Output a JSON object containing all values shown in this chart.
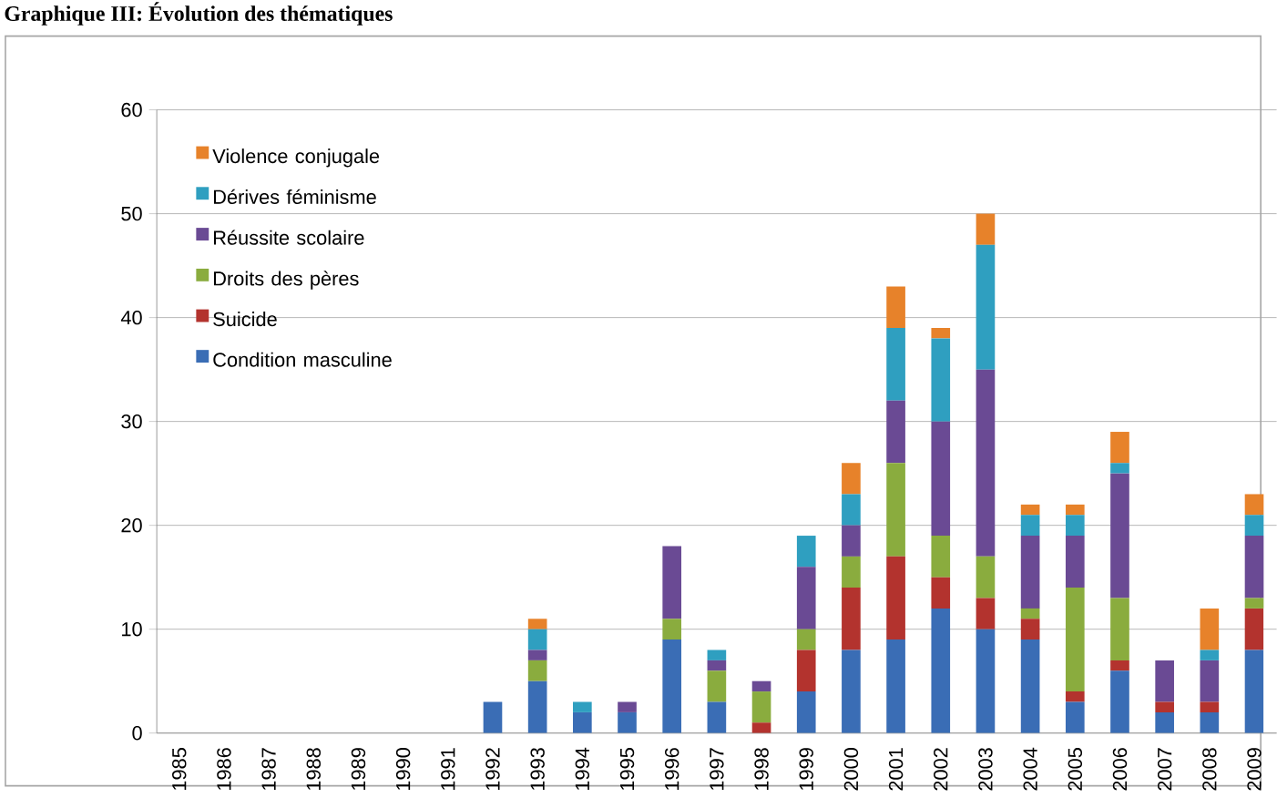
{
  "chart_data": {
    "type": "bar",
    "stacked": true,
    "title": "Graphique III: Évolution des thématiques",
    "categories": [
      "1985",
      "1986",
      "1987",
      "1988",
      "1989",
      "1990",
      "1991",
      "1992",
      "1993",
      "1994",
      "1995",
      "1996",
      "1997",
      "1998",
      "1999",
      "2000",
      "2001",
      "2002",
      "2003",
      "2004",
      "2005",
      "2006",
      "2007",
      "2008",
      "2009"
    ],
    "series": [
      {
        "name": "Condition masculine",
        "color": "#3a6db5",
        "values": [
          0,
          0,
          0,
          0,
          0,
          0,
          0,
          3,
          5,
          2,
          2,
          9,
          3,
          0,
          4,
          8,
          9,
          12,
          10,
          9,
          3,
          6,
          2,
          2,
          8
        ]
      },
      {
        "name": "Suicide",
        "color": "#b3332e",
        "values": [
          0,
          0,
          0,
          0,
          0,
          0,
          0,
          0,
          0,
          0,
          0,
          0,
          0,
          1,
          4,
          6,
          8,
          3,
          3,
          2,
          1,
          1,
          1,
          1,
          4
        ]
      },
      {
        "name": "Droits des pères",
        "color": "#8aac3e",
        "values": [
          0,
          0,
          0,
          0,
          0,
          0,
          0,
          0,
          2,
          0,
          0,
          2,
          3,
          3,
          2,
          3,
          9,
          4,
          4,
          1,
          10,
          6,
          0,
          0,
          1
        ]
      },
      {
        "name": "Réussite scolaire",
        "color": "#6a4a94",
        "values": [
          0,
          0,
          0,
          0,
          0,
          0,
          0,
          0,
          1,
          0,
          1,
          7,
          1,
          1,
          6,
          3,
          6,
          11,
          18,
          7,
          5,
          12,
          4,
          4,
          6
        ]
      },
      {
        "name": "Dérives féminisme",
        "color": "#2f9fc0",
        "values": [
          0,
          0,
          0,
          0,
          0,
          0,
          0,
          0,
          2,
          1,
          0,
          0,
          1,
          0,
          3,
          3,
          7,
          8,
          12,
          2,
          2,
          1,
          0,
          1,
          2
        ]
      },
      {
        "name": "Violence conjugale",
        "color": "#e7822a",
        "values": [
          0,
          0,
          0,
          0,
          0,
          0,
          0,
          0,
          1,
          0,
          0,
          0,
          0,
          0,
          0,
          3,
          4,
          1,
          3,
          1,
          1,
          3,
          0,
          4,
          2
        ]
      }
    ],
    "ylim": [
      0,
      60
    ],
    "yticks": [
      0,
      10,
      20,
      30,
      40,
      50,
      60
    ],
    "grid": "y",
    "legend": "top left"
  }
}
